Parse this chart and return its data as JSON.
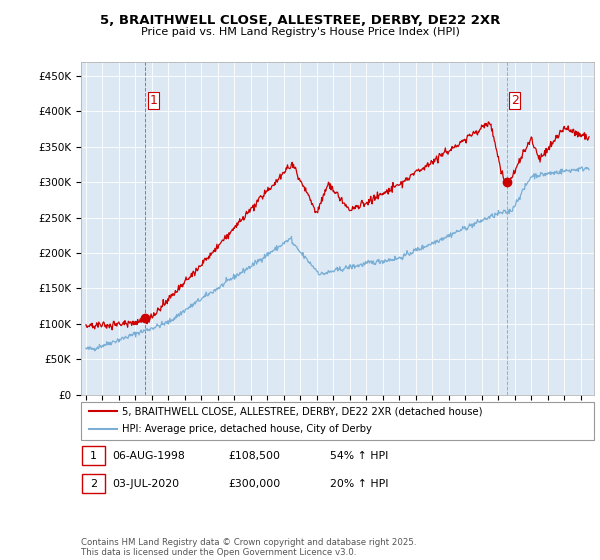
{
  "title_line1": "5, BRAITHWELL CLOSE, ALLESTREE, DERBY, DE22 2XR",
  "title_line2": "Price paid vs. HM Land Registry's House Price Index (HPI)",
  "ylim": [
    0,
    470000
  ],
  "yticks": [
    0,
    50000,
    100000,
    150000,
    200000,
    250000,
    300000,
    350000,
    400000,
    450000
  ],
  "ytick_labels": [
    "£0",
    "£50K",
    "£100K",
    "£150K",
    "£200K",
    "£250K",
    "£300K",
    "£350K",
    "£400K",
    "£450K"
  ],
  "sale1_date_num": 1998.6,
  "sale1_price": 108500,
  "sale2_date_num": 2020.5,
  "sale2_price": 300000,
  "red_color": "#cc0000",
  "blue_color": "#7aaed4",
  "plot_bg_color": "#dce9f5",
  "legend_label_red": "5, BRAITHWELL CLOSE, ALLESTREE, DERBY, DE22 2XR (detached house)",
  "legend_label_blue": "HPI: Average price, detached house, City of Derby",
  "table_row1": [
    "1",
    "06-AUG-1998",
    "£108,500",
    "54% ↑ HPI"
  ],
  "table_row2": [
    "2",
    "03-JUL-2020",
    "£300,000",
    "20% ↑ HPI"
  ],
  "footnote": "Contains HM Land Registry data © Crown copyright and database right 2025.\nThis data is licensed under the Open Government Licence v3.0.",
  "background_color": "#ffffff",
  "grid_color": "#ffffff"
}
